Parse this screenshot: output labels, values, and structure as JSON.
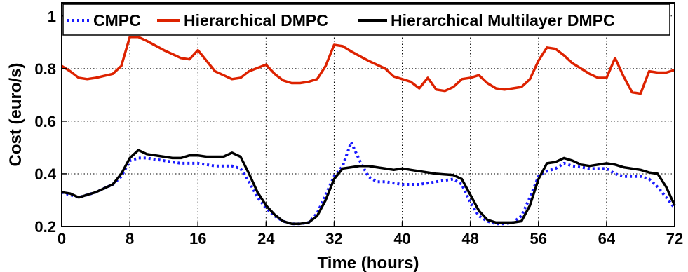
{
  "chart_data": {
    "type": "line",
    "title": "",
    "xlabel": "Time (hours)",
    "ylabel": "Cost (euro/s)",
    "xlim": [
      0,
      72
    ],
    "ylim": [
      0.2,
      1.05
    ],
    "xticks": [
      0,
      8,
      16,
      24,
      32,
      40,
      48,
      56,
      64,
      72
    ],
    "yticks": [
      0.2,
      0.4,
      0.6,
      0.8,
      1
    ],
    "ytick_labels": [
      "0.2",
      "0.4",
      "0.6",
      "0.8",
      "1"
    ],
    "grid": true,
    "legend_position": "top",
    "series": [
      {
        "name": "CMPC",
        "color": "#1a1aff",
        "style": "dotted",
        "points": [
          [
            0,
            0.33
          ],
          [
            1,
            0.32
          ],
          [
            2,
            0.31
          ],
          [
            4,
            0.33
          ],
          [
            6,
            0.36
          ],
          [
            7,
            0.39
          ],
          [
            8,
            0.45
          ],
          [
            9,
            0.46
          ],
          [
            10,
            0.46
          ],
          [
            12,
            0.45
          ],
          [
            14,
            0.44
          ],
          [
            16,
            0.44
          ],
          [
            18,
            0.43
          ],
          [
            20,
            0.43
          ],
          [
            21,
            0.42
          ],
          [
            22,
            0.37
          ],
          [
            23,
            0.31
          ],
          [
            24,
            0.27
          ],
          [
            25,
            0.24
          ],
          [
            26,
            0.22
          ],
          [
            27,
            0.21
          ],
          [
            28,
            0.21
          ],
          [
            29,
            0.215
          ],
          [
            30,
            0.25
          ],
          [
            31,
            0.32
          ],
          [
            32,
            0.39
          ],
          [
            33,
            0.43
          ],
          [
            34,
            0.52
          ],
          [
            35,
            0.45
          ],
          [
            36,
            0.39
          ],
          [
            37,
            0.37
          ],
          [
            38,
            0.37
          ],
          [
            40,
            0.36
          ],
          [
            42,
            0.36
          ],
          [
            44,
            0.37
          ],
          [
            46,
            0.38
          ],
          [
            47,
            0.36
          ],
          [
            48,
            0.29
          ],
          [
            49,
            0.24
          ],
          [
            50,
            0.22
          ],
          [
            51,
            0.21
          ],
          [
            52,
            0.21
          ],
          [
            53,
            0.215
          ],
          [
            54,
            0.24
          ],
          [
            55,
            0.31
          ],
          [
            56,
            0.39
          ],
          [
            57,
            0.41
          ],
          [
            58,
            0.42
          ],
          [
            59,
            0.44
          ],
          [
            60,
            0.43
          ],
          [
            62,
            0.42
          ],
          [
            64,
            0.42
          ],
          [
            65,
            0.4
          ],
          [
            66,
            0.39
          ],
          [
            68,
            0.39
          ],
          [
            69,
            0.38
          ],
          [
            70,
            0.35
          ],
          [
            71,
            0.31
          ],
          [
            72,
            0.27
          ]
        ]
      },
      {
        "name": "Hierarchical DMPC",
        "color": "#dd2200",
        "style": "solid",
        "points": [
          [
            0,
            0.81
          ],
          [
            1,
            0.79
          ],
          [
            2,
            0.765
          ],
          [
            3,
            0.76
          ],
          [
            4,
            0.765
          ],
          [
            6,
            0.78
          ],
          [
            7,
            0.81
          ],
          [
            8,
            0.92
          ],
          [
            9,
            0.92
          ],
          [
            10,
            0.905
          ],
          [
            12,
            0.87
          ],
          [
            14,
            0.84
          ],
          [
            15,
            0.835
          ],
          [
            16,
            0.87
          ],
          [
            17,
            0.83
          ],
          [
            18,
            0.79
          ],
          [
            19,
            0.775
          ],
          [
            20,
            0.76
          ],
          [
            21,
            0.765
          ],
          [
            22,
            0.79
          ],
          [
            24,
            0.815
          ],
          [
            25,
            0.78
          ],
          [
            26,
            0.755
          ],
          [
            27,
            0.745
          ],
          [
            28,
            0.745
          ],
          [
            29,
            0.75
          ],
          [
            30,
            0.76
          ],
          [
            31,
            0.81
          ],
          [
            32,
            0.89
          ],
          [
            33,
            0.885
          ],
          [
            34,
            0.865
          ],
          [
            36,
            0.83
          ],
          [
            38,
            0.8
          ],
          [
            39,
            0.77
          ],
          [
            40,
            0.76
          ],
          [
            41,
            0.75
          ],
          [
            42,
            0.725
          ],
          [
            43,
            0.765
          ],
          [
            44,
            0.72
          ],
          [
            45,
            0.715
          ],
          [
            46,
            0.73
          ],
          [
            47,
            0.76
          ],
          [
            48,
            0.765
          ],
          [
            49,
            0.775
          ],
          [
            50,
            0.745
          ],
          [
            51,
            0.725
          ],
          [
            52,
            0.72
          ],
          [
            53,
            0.725
          ],
          [
            54,
            0.73
          ],
          [
            55,
            0.76
          ],
          [
            56,
            0.83
          ],
          [
            57,
            0.88
          ],
          [
            58,
            0.875
          ],
          [
            59,
            0.85
          ],
          [
            60,
            0.82
          ],
          [
            61,
            0.8
          ],
          [
            62,
            0.78
          ],
          [
            63,
            0.765
          ],
          [
            64,
            0.765
          ],
          [
            65,
            0.84
          ],
          [
            66,
            0.77
          ],
          [
            67,
            0.71
          ],
          [
            68,
            0.705
          ],
          [
            69,
            0.79
          ],
          [
            70,
            0.785
          ],
          [
            71,
            0.785
          ],
          [
            72,
            0.795
          ]
        ]
      },
      {
        "name": "Hierarchical Multilayer DMPC",
        "color": "#000000",
        "style": "solid",
        "points": [
          [
            0,
            0.33
          ],
          [
            1,
            0.325
          ],
          [
            2,
            0.31
          ],
          [
            4,
            0.33
          ],
          [
            6,
            0.36
          ],
          [
            7,
            0.4
          ],
          [
            8,
            0.46
          ],
          [
            9,
            0.49
          ],
          [
            10,
            0.475
          ],
          [
            12,
            0.465
          ],
          [
            13,
            0.46
          ],
          [
            14,
            0.46
          ],
          [
            15,
            0.47
          ],
          [
            16,
            0.47
          ],
          [
            17,
            0.465
          ],
          [
            18,
            0.465
          ],
          [
            19,
            0.465
          ],
          [
            20,
            0.48
          ],
          [
            21,
            0.465
          ],
          [
            22,
            0.4
          ],
          [
            23,
            0.33
          ],
          [
            24,
            0.28
          ],
          [
            25,
            0.245
          ],
          [
            26,
            0.22
          ],
          [
            27,
            0.21
          ],
          [
            28,
            0.21
          ],
          [
            29,
            0.215
          ],
          [
            30,
            0.24
          ],
          [
            31,
            0.3
          ],
          [
            32,
            0.38
          ],
          [
            33,
            0.42
          ],
          [
            34,
            0.425
          ],
          [
            35,
            0.43
          ],
          [
            36,
            0.43
          ],
          [
            37,
            0.425
          ],
          [
            38,
            0.42
          ],
          [
            39,
            0.415
          ],
          [
            40,
            0.42
          ],
          [
            41,
            0.415
          ],
          [
            42,
            0.41
          ],
          [
            44,
            0.4
          ],
          [
            46,
            0.395
          ],
          [
            47,
            0.38
          ],
          [
            48,
            0.32
          ],
          [
            49,
            0.26
          ],
          [
            50,
            0.225
          ],
          [
            51,
            0.215
          ],
          [
            52,
            0.215
          ],
          [
            53,
            0.215
          ],
          [
            54,
            0.22
          ],
          [
            55,
            0.28
          ],
          [
            56,
            0.38
          ],
          [
            57,
            0.44
          ],
          [
            58,
            0.445
          ],
          [
            59,
            0.46
          ],
          [
            60,
            0.45
          ],
          [
            61,
            0.435
          ],
          [
            62,
            0.43
          ],
          [
            63,
            0.435
          ],
          [
            64,
            0.44
          ],
          [
            65,
            0.435
          ],
          [
            66,
            0.425
          ],
          [
            68,
            0.415
          ],
          [
            69,
            0.405
          ],
          [
            70,
            0.4
          ],
          [
            71,
            0.35
          ],
          [
            72,
            0.28
          ]
        ]
      }
    ]
  }
}
